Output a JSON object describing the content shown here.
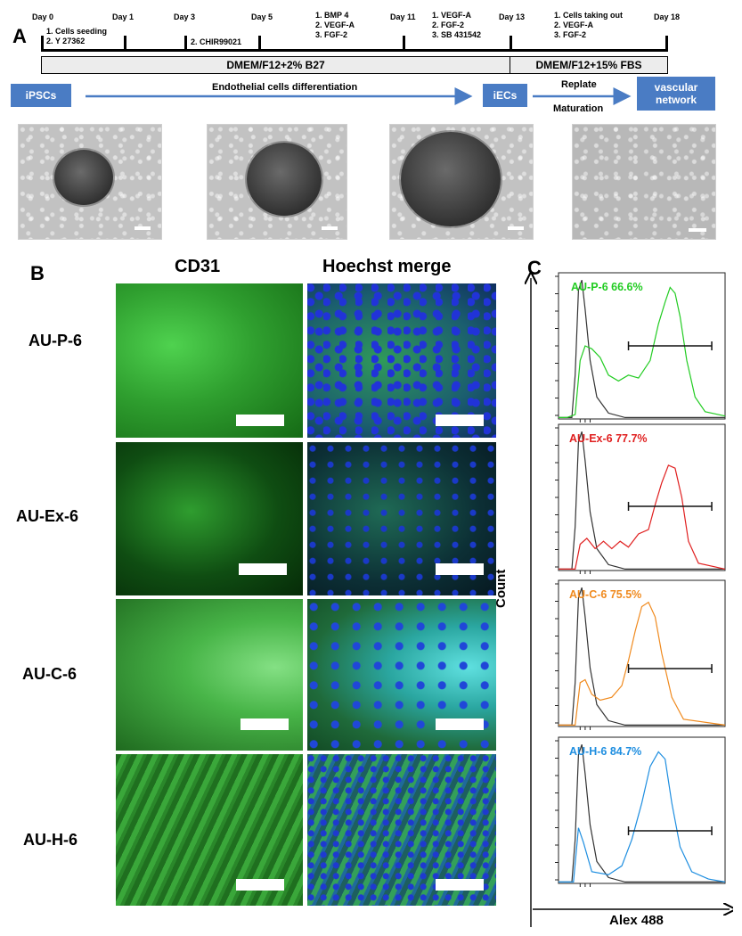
{
  "panel_a": {
    "letter": "A",
    "days": [
      "Day 0",
      "Day 1",
      "Day 3",
      "Day 5",
      "Day 11",
      "Day 13",
      "Day 18"
    ],
    "notes": {
      "day0": [
        "1.  Cells seeding",
        "2.  Y 27362"
      ],
      "day3": [
        "2. CHIR99021"
      ],
      "day5": [
        "1. BMP 4",
        "2. VEGF-A",
        "3. FGF-2"
      ],
      "day11": [
        "1. VEGF-A",
        "2. FGF-2",
        "3. SB 431542"
      ],
      "day13": [
        "1. Cells taking out",
        "2. VEGF-A",
        "3. FGF-2"
      ]
    },
    "medium_1": "DMEM/F12+2% B27",
    "medium_2": "DMEM/F12+15% FBS",
    "flow": {
      "start": "iPSCs",
      "process": "Endothelial cells differentiation",
      "mid": "iECs",
      "replate": "Replate",
      "maturation": "Maturation",
      "end_line1": "vascular",
      "end_line2": "network"
    }
  },
  "panel_b": {
    "letter": "B",
    "col_headers": [
      "CD31",
      "Hoechst merge"
    ],
    "rows": [
      "AU-P-6",
      "AU-Ex-6",
      "AU-C-6",
      "AU-H-6"
    ]
  },
  "panel_c": {
    "letter": "C",
    "y_label": "Count",
    "x_label": "Alex 488",
    "colors": {
      "control": "#333333",
      "p6": "#22cc22",
      "ex6": "#e02020",
      "c6": "#f08a1e",
      "h6": "#1e8ee0"
    }
  },
  "chart_data": {
    "type": "histogram",
    "x_label": "Alex 488",
    "y_label": "Count",
    "gate": "positive gate (horizontal bar)",
    "series": [
      {
        "name": "AU-P-6",
        "percent_positive": "66.6%",
        "label": "AU-P-6 66.6%"
      },
      {
        "name": "AU-Ex-6",
        "percent_positive": "77.7%",
        "label": "AU-Ex-6 77.7%"
      },
      {
        "name": "AU-C-6",
        "percent_positive": "75.5%",
        "label": "AU-C-6 75.5%"
      },
      {
        "name": "AU-H-6",
        "percent_positive": "84.7%",
        "label": "AU-H-6 84.7%"
      }
    ]
  }
}
